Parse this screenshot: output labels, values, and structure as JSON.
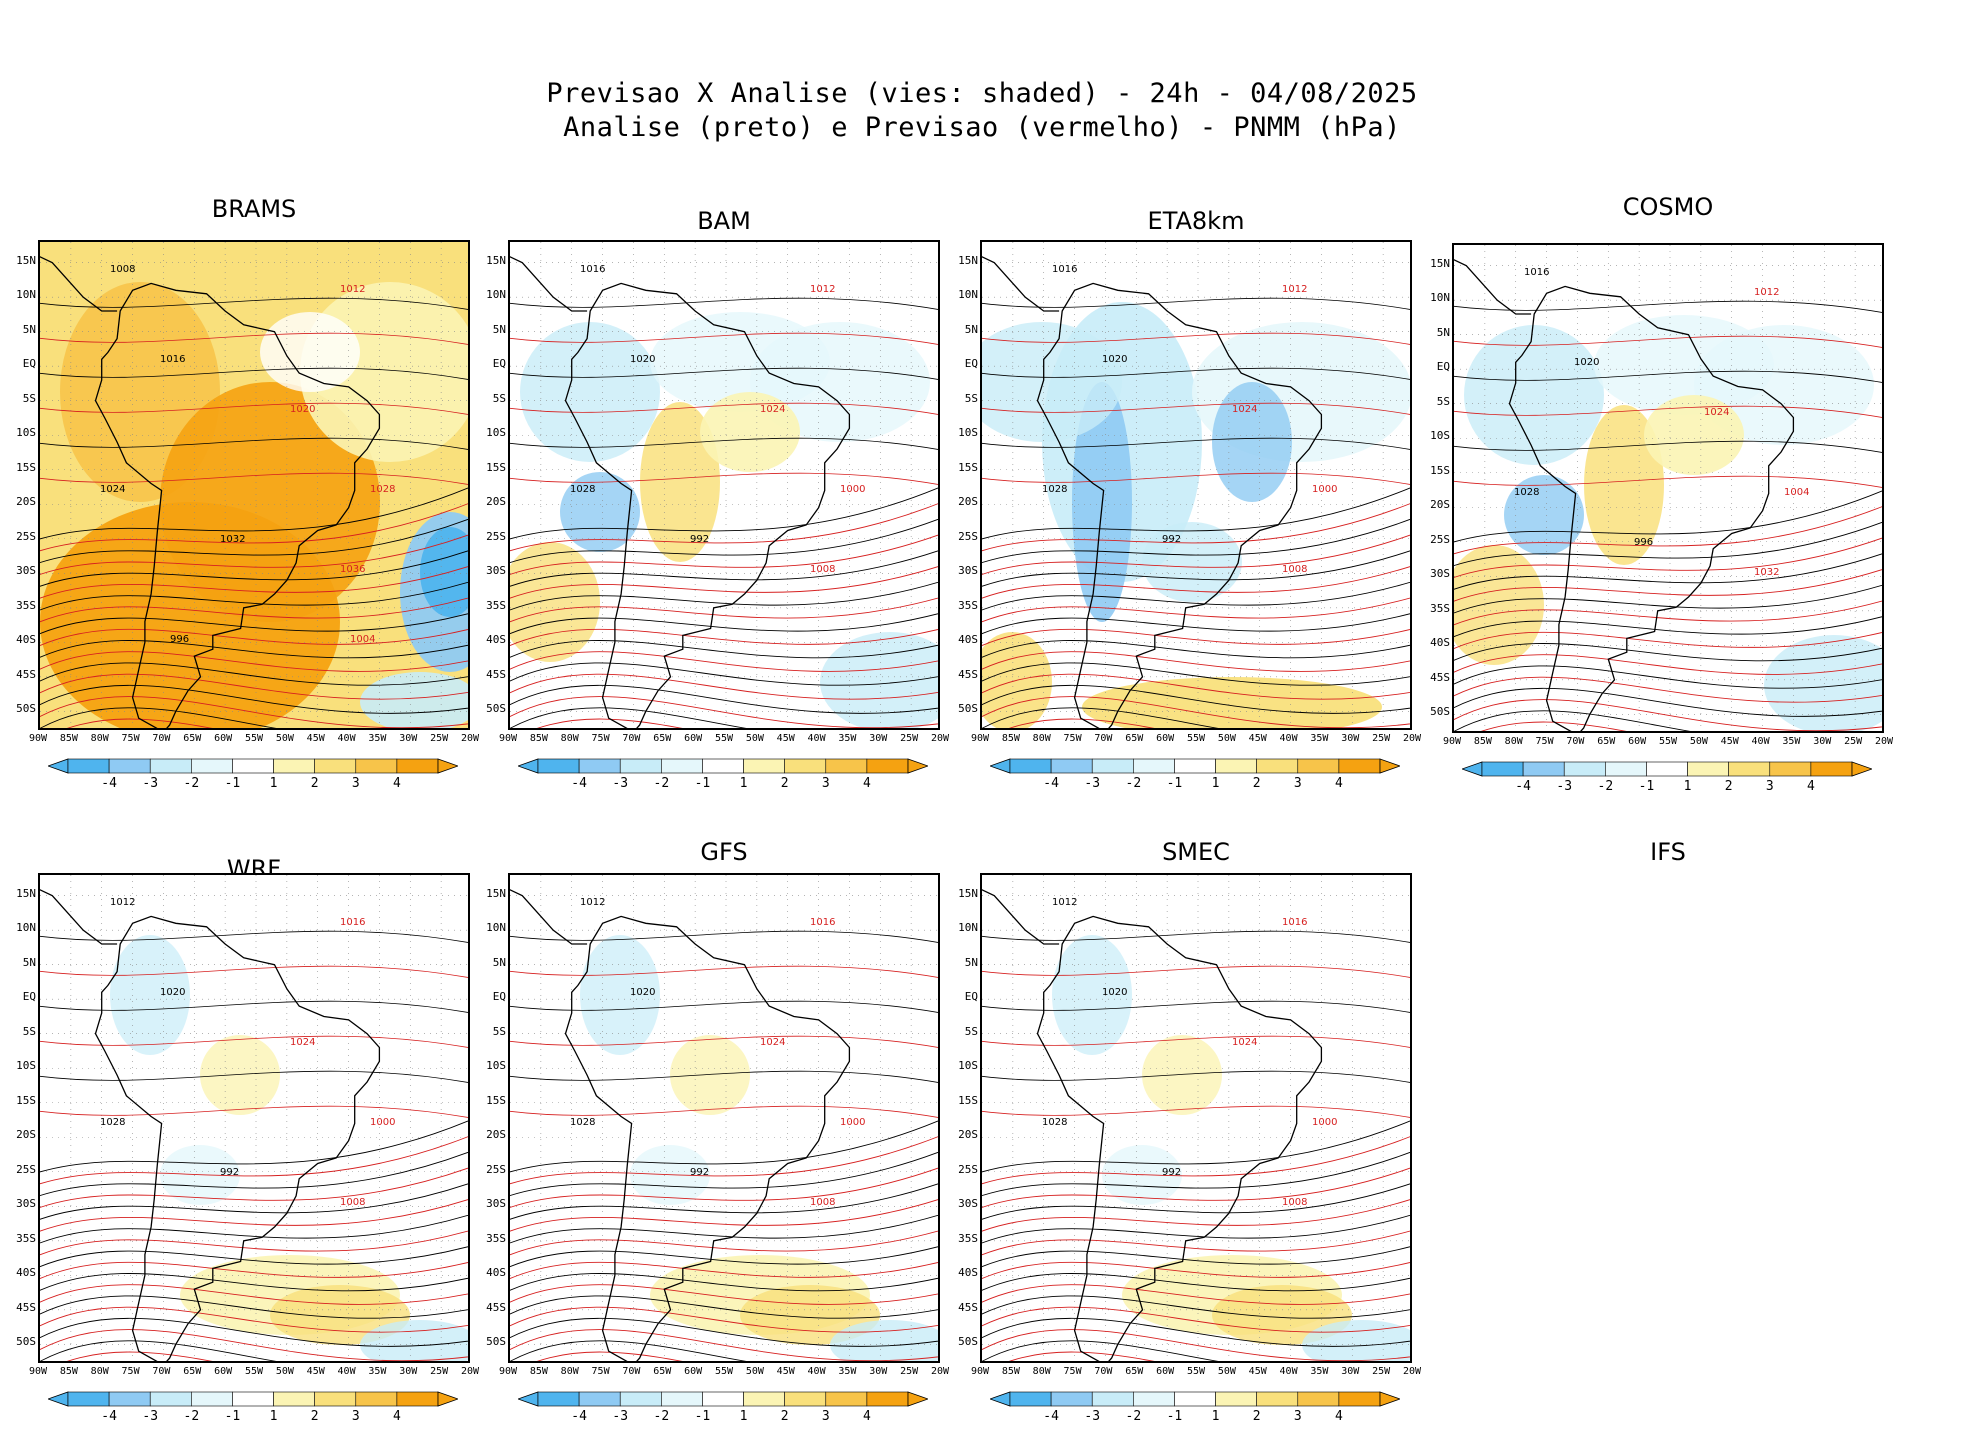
{
  "title": {
    "line1": "Previsao X Analise (vies: shaded) - 24h - 04/08/2025",
    "line2": "Analise (preto) e Previsao (vermelho) - PNMM (hPa)"
  },
  "colors": {
    "neg4": "#4fb4ee",
    "neg3": "#8fcaf3",
    "neg2": "#c8ecf8",
    "neg1": "#e5f7fb",
    "zero": "#ffffff",
    "pos1": "#fbf4b4",
    "pos2": "#f9e07c",
    "pos3": "#f7c44a",
    "pos4": "#f5a211",
    "analysis_contour": "#000000",
    "forecast_contour": "#d62020"
  },
  "lat_labels": [
    "15N",
    "10N",
    "5N",
    "EQ",
    "5S",
    "10S",
    "15S",
    "20S",
    "25S",
    "30S",
    "35S",
    "40S",
    "45S",
    "50S"
  ],
  "lon_labels": [
    "90W",
    "85W",
    "80W",
    "75W",
    "70W",
    "65W",
    "60W",
    "55W",
    "50W",
    "45W",
    "40W",
    "35W",
    "30W",
    "25W",
    "20W"
  ],
  "colorbar_labels": [
    "-4",
    "-3",
    "-2",
    "-1",
    "1",
    "2",
    "3",
    "4"
  ],
  "panels": [
    {
      "name": "BRAMS",
      "bias": "warm",
      "contours": [
        "1008",
        "1012",
        "1016",
        "1020",
        "1024",
        "1028",
        "1032",
        "1036",
        "996",
        "1004"
      ]
    },
    {
      "name": "BAM",
      "bias": "mixed",
      "contours": [
        "1016",
        "1012",
        "1020",
        "1024",
        "1028",
        "1000",
        "992",
        "1008"
      ]
    },
    {
      "name": "ETA8km",
      "bias": "cool",
      "contours": [
        "1016",
        "1012",
        "1020",
        "1024",
        "1028",
        "1000",
        "992",
        "1008"
      ]
    },
    {
      "name": "COSMO",
      "bias": "mixed",
      "contours": [
        "1016",
        "1012",
        "1020",
        "1024",
        "1028",
        "1004",
        "996",
        "1032"
      ]
    },
    {
      "name": "WRF",
      "bias": "light",
      "contours": [
        "1012",
        "1016",
        "1020",
        "1024",
        "1028",
        "1000",
        "992",
        "1008"
      ]
    },
    {
      "name": "GFS",
      "bias": "light",
      "contours": [
        "1012",
        "1016",
        "1020",
        "1024",
        "1028",
        "1000",
        "992",
        "1008"
      ]
    },
    {
      "name": "SMEC",
      "bias": "light",
      "contours": [
        "1012",
        "1016",
        "1020",
        "1024",
        "1028",
        "1000",
        "992",
        "1008"
      ]
    },
    {
      "name": "IFS",
      "bias": "none",
      "contours": []
    }
  ]
}
